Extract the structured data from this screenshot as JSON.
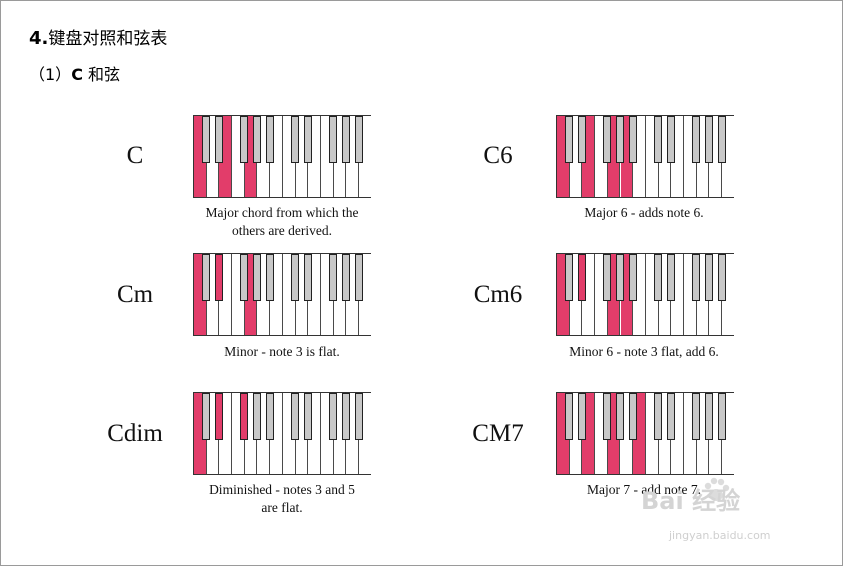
{
  "heading": {
    "number": "4.",
    "text": "键盘对照和弦表"
  },
  "subheading": {
    "prefix": "（1）",
    "bold": "C",
    "text": " 和弦"
  },
  "colors": {
    "highlight": "#e23d6a",
    "black_key": "#c8c8c8"
  },
  "chords": [
    {
      "name": "C",
      "caption_lines": [
        "Major chord from which the",
        "others are derived."
      ],
      "white_on": [
        0,
        2,
        4
      ],
      "black_on": []
    },
    {
      "name": "C6",
      "caption_lines": [
        "Major 6 - adds note 6."
      ],
      "white_on": [
        0,
        2,
        4,
        5
      ],
      "black_on": []
    },
    {
      "name": "Cm",
      "caption_lines": [
        "Minor - note 3 is flat."
      ],
      "white_on": [
        0,
        4
      ],
      "black_on": [
        1
      ]
    },
    {
      "name": "Cm6",
      "caption_lines": [
        "Minor 6 - note 3 flat, add 6."
      ],
      "white_on": [
        0,
        4,
        5
      ],
      "black_on": [
        1
      ]
    },
    {
      "name": "Cdim",
      "caption_lines": [
        "Diminished - notes 3 and 5",
        "are flat."
      ],
      "white_on": [
        0
      ],
      "black_on": [
        1,
        2
      ]
    },
    {
      "name": "CM7",
      "caption_lines": [
        "Major 7 - add note 7."
      ],
      "white_on": [
        0,
        2,
        4,
        6
      ],
      "black_on": []
    }
  ],
  "watermark": {
    "main": "Bai 经验",
    "sub": "jingyan.baidu.com"
  }
}
